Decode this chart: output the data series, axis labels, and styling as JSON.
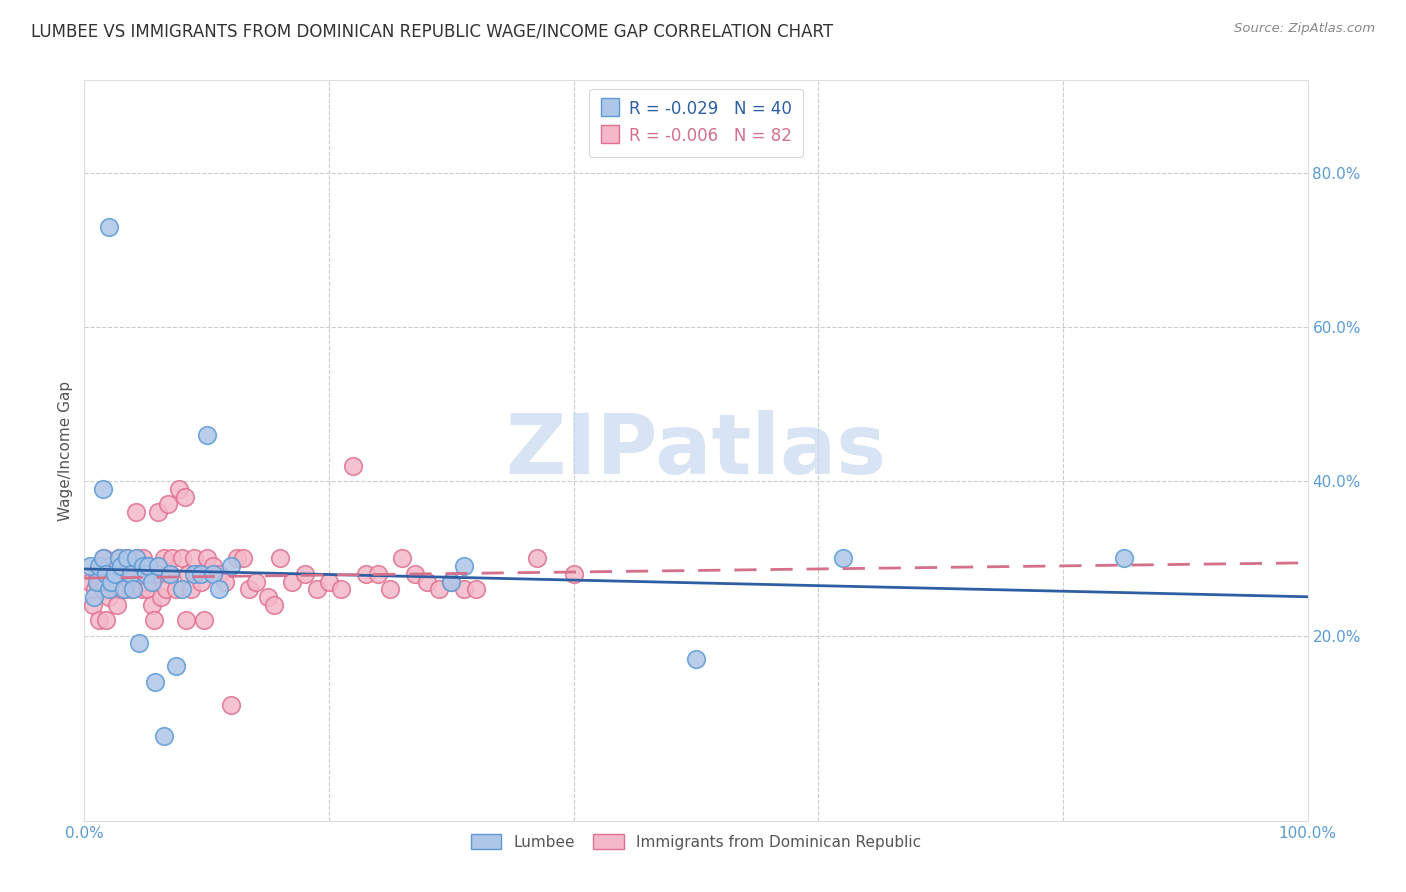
{
  "title": "LUMBEE VS IMMIGRANTS FROM DOMINICAN REPUBLIC WAGE/INCOME GAP CORRELATION CHART",
  "source": "Source: ZipAtlas.com",
  "ylabel": "Wage/Income Gap",
  "xlim": [
    0.0,
    1.0
  ],
  "ylim": [
    -0.04,
    0.92
  ],
  "yticks": [
    0.2,
    0.4,
    0.6,
    0.8
  ],
  "yticklabels": [
    "20.0%",
    "40.0%",
    "60.0%",
    "80.0%"
  ],
  "xtick_vals": [
    0.0,
    0.2,
    0.4,
    0.6,
    0.8,
    1.0
  ],
  "xtick_labels": [
    "0.0%",
    "",
    "",
    "",
    "",
    "100.0%"
  ],
  "lumbee_color": "#aec6e8",
  "lumbee_edge": "#5b9bd5",
  "dominican_color": "#f4b8c8",
  "dominican_edge": "#e07090",
  "trendline_lumbee_color": "#2e5fa3",
  "trendline_dominican_color": "#d4708a",
  "legend_label_lumbee": "R = -0.029   N = 40",
  "legend_label_dominican": "R = -0.006   N = 82",
  "legend_text_color_lumbee": "#2e5fa3",
  "legend_text_color_dominican": "#d4708a",
  "bottom_legend_lumbee": "Lumbee",
  "bottom_legend_dominican": "Immigrants from Dominican Republic",
  "watermark": "ZIPatlas",
  "watermark_color": "#c8d8f0",
  "background_color": "#ffffff",
  "grid_color": "#cccccc",
  "title_color": "#333333",
  "axis_tick_color": "#5b9bd5",
  "ylabel_color": "#555555",
  "source_color": "#888888",
  "lumbee_x": [
    0.02,
    0.015,
    0.005,
    0.008,
    0.01,
    0.012,
    0.015,
    0.018,
    0.02,
    0.022,
    0.025,
    0.028,
    0.03,
    0.032,
    0.035,
    0.038,
    0.04,
    0.042,
    0.045,
    0.048,
    0.05,
    0.052,
    0.055,
    0.058,
    0.06,
    0.065,
    0.07,
    0.075,
    0.08,
    0.09,
    0.095,
    0.1,
    0.105,
    0.11,
    0.12,
    0.3,
    0.31,
    0.5,
    0.62,
    0.85
  ],
  "lumbee_y": [
    0.73,
    0.39,
    0.29,
    0.25,
    0.27,
    0.29,
    0.3,
    0.28,
    0.26,
    0.27,
    0.28,
    0.3,
    0.29,
    0.26,
    0.3,
    0.28,
    0.26,
    0.3,
    0.19,
    0.29,
    0.28,
    0.29,
    0.27,
    0.14,
    0.29,
    0.07,
    0.28,
    0.16,
    0.26,
    0.28,
    0.28,
    0.46,
    0.28,
    0.26,
    0.29,
    0.27,
    0.29,
    0.17,
    0.3,
    0.3
  ],
  "dominican_x": [
    0.005,
    0.007,
    0.009,
    0.01,
    0.012,
    0.013,
    0.015,
    0.016,
    0.018,
    0.02,
    0.022,
    0.024,
    0.025,
    0.027,
    0.028,
    0.03,
    0.032,
    0.033,
    0.035,
    0.037,
    0.038,
    0.04,
    0.042,
    0.043,
    0.045,
    0.047,
    0.048,
    0.05,
    0.052,
    0.053,
    0.055,
    0.057,
    0.058,
    0.06,
    0.062,
    0.063,
    0.065,
    0.067,
    0.068,
    0.07,
    0.072,
    0.075,
    0.077,
    0.08,
    0.082,
    0.083,
    0.085,
    0.087,
    0.09,
    0.092,
    0.095,
    0.098,
    0.1,
    0.105,
    0.11,
    0.115,
    0.12,
    0.125,
    0.13,
    0.135,
    0.14,
    0.15,
    0.155,
    0.16,
    0.17,
    0.18,
    0.19,
    0.2,
    0.21,
    0.22,
    0.23,
    0.24,
    0.25,
    0.26,
    0.27,
    0.28,
    0.29,
    0.3,
    0.31,
    0.32,
    0.37,
    0.4
  ],
  "dominican_y": [
    0.27,
    0.24,
    0.26,
    0.28,
    0.22,
    0.27,
    0.26,
    0.3,
    0.22,
    0.25,
    0.29,
    0.27,
    0.26,
    0.24,
    0.3,
    0.26,
    0.28,
    0.26,
    0.3,
    0.27,
    0.26,
    0.28,
    0.36,
    0.3,
    0.27,
    0.26,
    0.3,
    0.27,
    0.26,
    0.29,
    0.24,
    0.22,
    0.28,
    0.36,
    0.28,
    0.25,
    0.3,
    0.26,
    0.37,
    0.28,
    0.3,
    0.26,
    0.39,
    0.3,
    0.38,
    0.22,
    0.28,
    0.26,
    0.3,
    0.28,
    0.27,
    0.22,
    0.3,
    0.29,
    0.28,
    0.27,
    0.11,
    0.3,
    0.3,
    0.26,
    0.27,
    0.25,
    0.24,
    0.3,
    0.27,
    0.28,
    0.26,
    0.27,
    0.26,
    0.42,
    0.28,
    0.28,
    0.26,
    0.3,
    0.28,
    0.27,
    0.26,
    0.27,
    0.26,
    0.26,
    0.3,
    0.28
  ]
}
